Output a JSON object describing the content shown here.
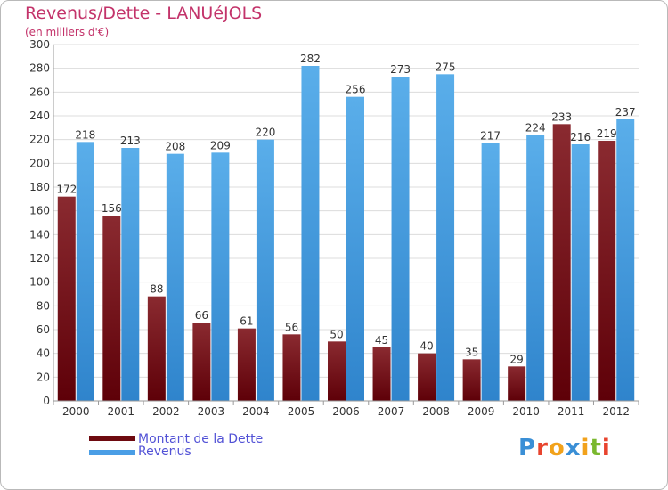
{
  "header": {
    "title": "Revenus/Dette - LANUéJOLS",
    "subtitle": "(en milliers d'€)"
  },
  "legend": {
    "dette_label": "Montant de la Dette",
    "revenus_label": "Revenus"
  },
  "logo": {
    "letters": [
      "P",
      "r",
      "o",
      "x",
      "i",
      "t",
      "i"
    ],
    "colors": [
      "#3a8fd6",
      "#e8442e",
      "#f2a21b",
      "#3a8fd6",
      "#f2a21b",
      "#7ab82e",
      "#e8442e"
    ]
  },
  "colors": {
    "dette": "#7a0f16",
    "revenus": "#4a9ee6",
    "title": "#c3336a",
    "legend_text": "#5252d6"
  },
  "chart_data": {
    "type": "bar",
    "title": "Revenus/Dette - LANUéJOLS",
    "ylabel": "",
    "xlabel": "",
    "categories": [
      "2000",
      "2001",
      "2002",
      "2003",
      "2004",
      "2005",
      "2006",
      "2007",
      "2008",
      "2009",
      "2010",
      "2011",
      "2012"
    ],
    "series": [
      {
        "name": "Montant de la Dette",
        "values": [
          172,
          156,
          88,
          66,
          61,
          56,
          50,
          45,
          40,
          35,
          29,
          233,
          219
        ]
      },
      {
        "name": "Revenus",
        "values": [
          218,
          213,
          208,
          209,
          220,
          282,
          256,
          273,
          275,
          217,
          224,
          216,
          237
        ]
      }
    ],
    "ylim": [
      0,
      300
    ],
    "yticks": [
      0,
      20,
      40,
      60,
      80,
      100,
      120,
      140,
      160,
      180,
      200,
      220,
      240,
      260,
      280,
      300
    ],
    "grid": true,
    "legend_position": "bottom-left"
  }
}
